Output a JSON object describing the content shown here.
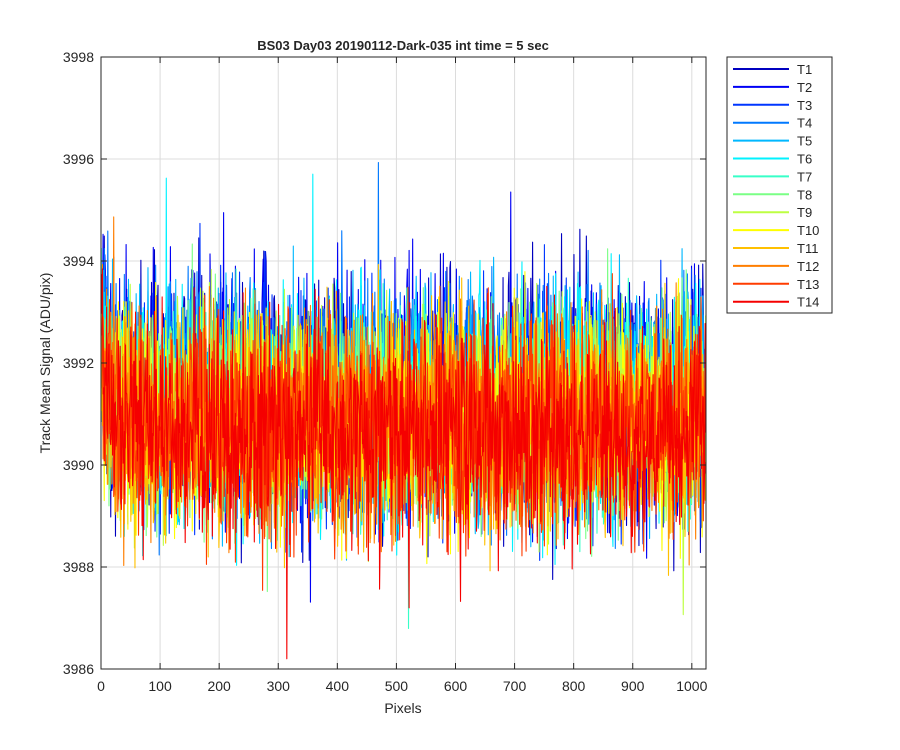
{
  "chart_data": {
    "type": "line",
    "title": "BS03 Day03 20190112-Dark-035 int time = 5 sec",
    "xlabel": "Pixels",
    "ylabel": "Track Mean Signal (ADU/pix)",
    "xlim": [
      0,
      1024
    ],
    "ylim": [
      3986,
      3998
    ],
    "xticks": [
      0,
      100,
      200,
      300,
      400,
      500,
      600,
      700,
      800,
      900,
      1000
    ],
    "yticks": [
      3986,
      3988,
      3990,
      3992,
      3994,
      3996,
      3998
    ],
    "grid": true,
    "legend_position": "outside-top-right",
    "num_points": 1024,
    "series": [
      {
        "name": "T1",
        "color": "#0000bf",
        "mean": 3991.3,
        "spread": 1.6
      },
      {
        "name": "T2",
        "color": "#0000f5",
        "mean": 3991.3,
        "spread": 1.6
      },
      {
        "name": "T3",
        "color": "#0036ff",
        "mean": 3991.2,
        "spread": 1.5
      },
      {
        "name": "T4",
        "color": "#0079ff",
        "mean": 3991.2,
        "spread": 1.5
      },
      {
        "name": "T5",
        "color": "#00b8ff",
        "mean": 3991.2,
        "spread": 1.5
      },
      {
        "name": "T6",
        "color": "#00f2ff",
        "mean": 3991.1,
        "spread": 1.5
      },
      {
        "name": "T7",
        "color": "#37ffc8",
        "mean": 3991.0,
        "spread": 1.4
      },
      {
        "name": "T8",
        "color": "#7aff85",
        "mean": 3991.0,
        "spread": 1.4
      },
      {
        "name": "T9",
        "color": "#bdff42",
        "mean": 3990.9,
        "spread": 1.4
      },
      {
        "name": "T10",
        "color": "#ffff00",
        "mean": 3990.9,
        "spread": 1.4
      },
      {
        "name": "T11",
        "color": "#ffc000",
        "mean": 3990.8,
        "spread": 1.4
      },
      {
        "name": "T12",
        "color": "#ff7e00",
        "mean": 3990.8,
        "spread": 1.4
      },
      {
        "name": "T13",
        "color": "#ff3c00",
        "mean": 3990.8,
        "spread": 1.4
      },
      {
        "name": "T14",
        "color": "#f50000",
        "mean": 3990.7,
        "spread": 1.4
      }
    ]
  }
}
